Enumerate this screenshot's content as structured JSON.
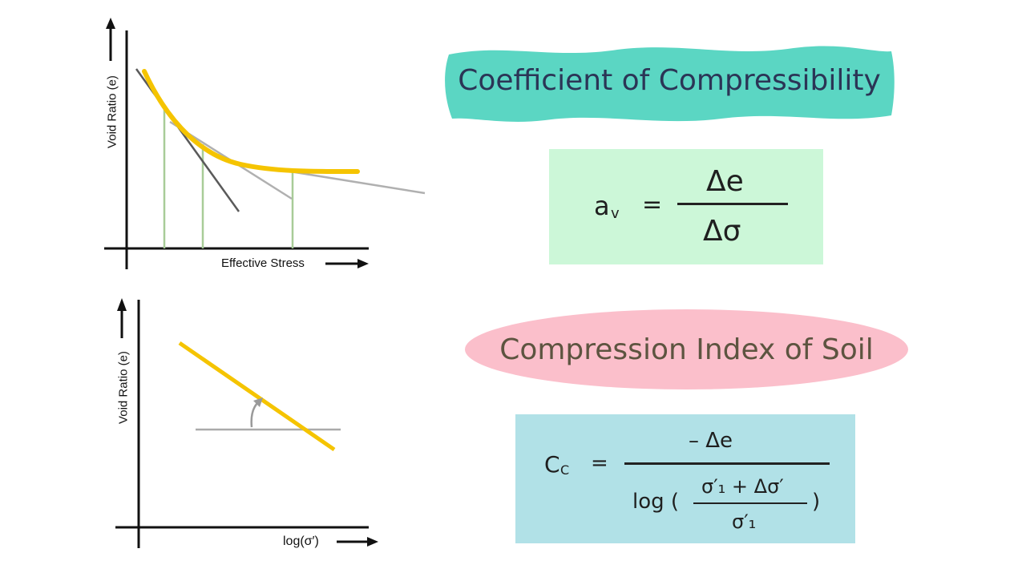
{
  "top_graph": {
    "ylabel": "Void Ratio (e)",
    "xlabel": "Effective Stress"
  },
  "bottom_graph": {
    "ylabel": "Void Ratio (e)",
    "xlabel": "log(σ′)"
  },
  "compressibility": {
    "title": "Coefficient of Compressibility",
    "lhs": "a",
    "lhs_sub": "v",
    "equals": "=",
    "numerator": "Δe",
    "denominator": "Δσ"
  },
  "compression_index": {
    "title": "Compression Index of Soil",
    "lhs": "C",
    "lhs_sub": "C",
    "equals": "=",
    "numerator": "– Δe",
    "log": "log (",
    "inner_numerator": "σ′₁ + Δσ′",
    "inner_denominator": "σ′₁",
    "close_paren": ")"
  },
  "colors": {
    "curve": "#f5c400",
    "tangent_dark": "#5a5a5a",
    "tangent_light": "#b0b0b0",
    "guide": "#a8cc98",
    "teal_banner": "#5bd6c3",
    "pink_banner": "#fbbfcb",
    "green_box": "#ccf7d8",
    "blue_box": "#b1e1e7"
  }
}
